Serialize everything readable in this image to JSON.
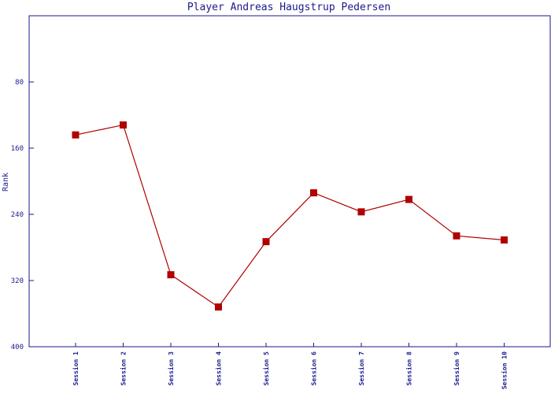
{
  "colors": {
    "axis": "#1a1a8c",
    "series": "#b00000",
    "background": "#ffffff"
  },
  "chart_data": {
    "type": "line",
    "title": "Player Andreas Haugstrup Pedersen",
    "xlabel": "",
    "ylabel": "Rank",
    "ylim": [
      400,
      0
    ],
    "y_inverted": true,
    "yticks": [
      80,
      160,
      240,
      320,
      400
    ],
    "grid": false,
    "categories": [
      "Session 1",
      "Session 2",
      "Session 3",
      "Session 4",
      "Session 5",
      "Session 6",
      "Session 7",
      "Session 8",
      "Session 9",
      "Session 10"
    ],
    "series": [
      {
        "values": [
          144,
          132,
          313,
          352,
          273,
          214,
          237,
          222,
          266,
          271
        ],
        "marker": "square"
      }
    ]
  }
}
